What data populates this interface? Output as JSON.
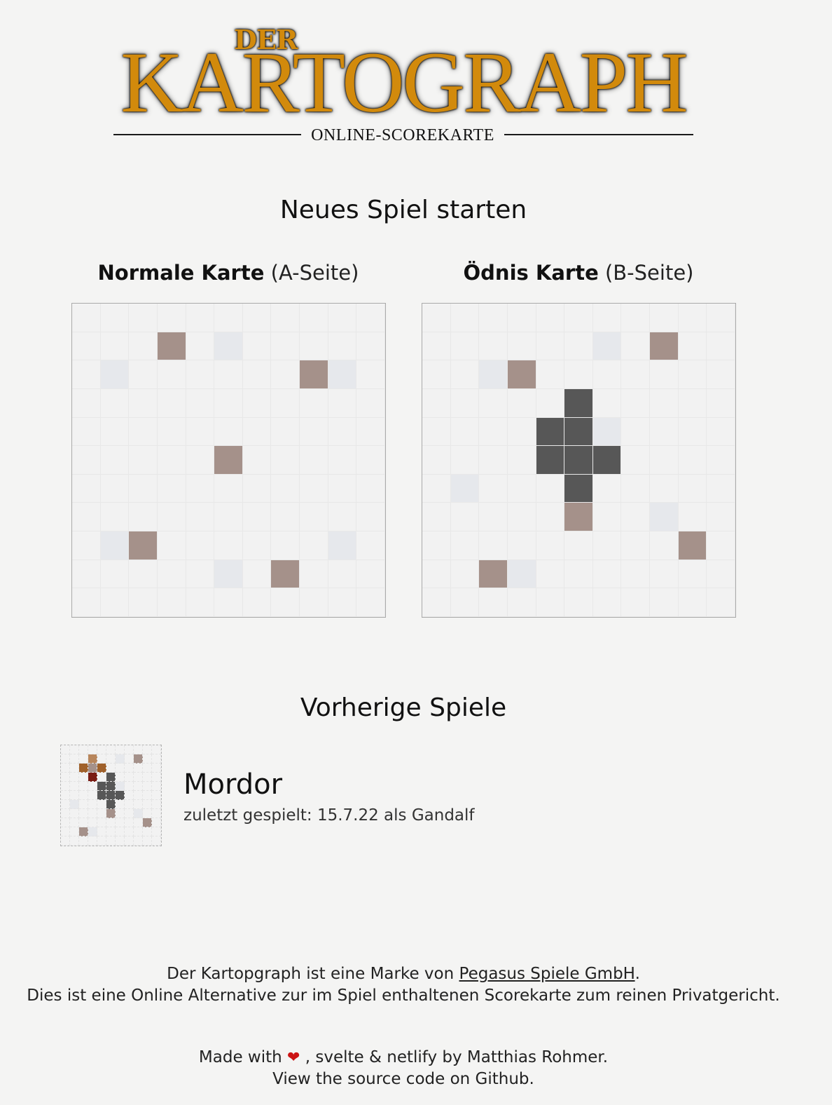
{
  "logo": {
    "der": "DER",
    "title": "KARTOGRAPH",
    "subtitle": "ONLINE-SCOREKARTE"
  },
  "new_game": {
    "heading": "Neues Spiel starten",
    "maps": [
      {
        "name": "Normale Karte",
        "side": "(A-Seite)",
        "cells": [
          [
            0,
            0,
            0,
            0,
            0,
            0,
            0,
            0,
            0,
            0,
            0
          ],
          [
            0,
            0,
            0,
            "mountain",
            0,
            "ruin",
            0,
            0,
            0,
            0,
            0
          ],
          [
            0,
            "ruin",
            0,
            0,
            0,
            0,
            0,
            0,
            "mountain",
            "ruin",
            0
          ],
          [
            0,
            0,
            0,
            0,
            0,
            0,
            0,
            0,
            0,
            0,
            0
          ],
          [
            0,
            0,
            0,
            0,
            0,
            0,
            0,
            0,
            0,
            0,
            0
          ],
          [
            0,
            0,
            0,
            0,
            0,
            "mountain",
            0,
            0,
            0,
            0,
            0
          ],
          [
            0,
            0,
            0,
            0,
            0,
            0,
            0,
            0,
            0,
            0,
            0
          ],
          [
            0,
            0,
            0,
            0,
            0,
            0,
            0,
            0,
            0,
            0,
            0
          ],
          [
            0,
            "ruin",
            "mountain",
            0,
            0,
            0,
            0,
            0,
            0,
            "ruin",
            0
          ],
          [
            0,
            0,
            0,
            0,
            0,
            "ruin",
            0,
            "mountain",
            0,
            0,
            0
          ],
          [
            0,
            0,
            0,
            0,
            0,
            0,
            0,
            0,
            0,
            0,
            0
          ]
        ]
      },
      {
        "name": "Ödnis Karte",
        "side": "(B-Seite)",
        "cells": [
          [
            0,
            0,
            0,
            0,
            0,
            0,
            0,
            0,
            0,
            0,
            0
          ],
          [
            0,
            0,
            0,
            0,
            0,
            0,
            "ruin",
            0,
            "mountain",
            0,
            0
          ],
          [
            0,
            0,
            "ruin",
            "mountain",
            0,
            0,
            0,
            0,
            0,
            0,
            0
          ],
          [
            0,
            0,
            0,
            0,
            0,
            "waste",
            0,
            0,
            0,
            0,
            0
          ],
          [
            0,
            0,
            0,
            0,
            "waste",
            "waste",
            "ruin",
            0,
            0,
            0,
            0
          ],
          [
            0,
            0,
            0,
            0,
            "waste",
            "waste",
            "waste",
            0,
            0,
            0,
            0
          ],
          [
            0,
            "ruin",
            0,
            0,
            0,
            "waste",
            0,
            0,
            0,
            0,
            0
          ],
          [
            0,
            0,
            0,
            0,
            0,
            "mountain",
            0,
            0,
            "ruin",
            0,
            0
          ],
          [
            0,
            0,
            0,
            0,
            0,
            0,
            0,
            0,
            0,
            "mountain",
            0
          ],
          [
            0,
            0,
            "mountain",
            "ruin",
            0,
            0,
            0,
            0,
            0,
            0,
            0
          ],
          [
            0,
            0,
            0,
            0,
            0,
            0,
            0,
            0,
            0,
            0,
            0
          ]
        ]
      }
    ]
  },
  "previous": {
    "heading": "Vorherige Spiele",
    "games": [
      {
        "name": "Mordor",
        "meta": "zuletzt gespielt: 15.7.22 als Gandalf",
        "cells": [
          [
            0,
            0,
            0,
            0,
            0,
            0,
            0,
            0,
            0,
            0,
            0
          ],
          [
            0,
            0,
            0,
            "village",
            0,
            0,
            "ruin",
            0,
            "mountain",
            0,
            0
          ],
          [
            0,
            0,
            "forest",
            "mountain",
            "forest",
            0,
            0,
            0,
            0,
            0,
            0
          ],
          [
            0,
            0,
            0,
            "monster",
            0,
            "waste",
            0,
            0,
            0,
            0,
            0
          ],
          [
            0,
            0,
            0,
            0,
            "waste",
            "waste",
            "ruin",
            0,
            0,
            0,
            0
          ],
          [
            0,
            0,
            0,
            0,
            "waste",
            "waste",
            "waste",
            0,
            0,
            0,
            0
          ],
          [
            0,
            "ruin",
            0,
            0,
            0,
            "waste",
            0,
            0,
            0,
            0,
            0
          ],
          [
            0,
            0,
            0,
            0,
            0,
            "mountain",
            0,
            0,
            "ruin",
            0,
            0
          ],
          [
            0,
            0,
            0,
            0,
            0,
            0,
            0,
            0,
            0,
            "mountain",
            0
          ],
          [
            0,
            0,
            "mountain",
            "ruin",
            0,
            0,
            0,
            0,
            0,
            0,
            0
          ],
          [
            0,
            0,
            0,
            0,
            0,
            0,
            0,
            0,
            0,
            0,
            0
          ]
        ]
      }
    ]
  },
  "footer": {
    "line1_pre": "Der Kartopgraph ist eine Marke von ",
    "line1_link": "Pegasus Spiele GmbH",
    "line1_post": ".",
    "line2": "Dies ist eine Online Alternative zur im Spiel enthaltenen Scorekarte zum reinen Privatgericht.",
    "made_pre": "Made with ",
    "made_post": " , svelte & netlify by Matthias Rohmer.",
    "source": "View the source code on Github.",
    "heart_icon": "heart-icon"
  }
}
